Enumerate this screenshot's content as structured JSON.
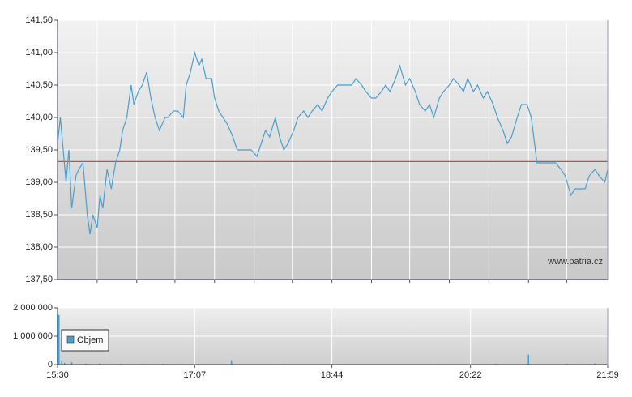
{
  "chart_data": [
    {
      "type": "line",
      "x": [
        930,
        932,
        934,
        936,
        938,
        940,
        943,
        945,
        948,
        951,
        953,
        955,
        958,
        960,
        962,
        965,
        968,
        971,
        974,
        976,
        979,
        982,
        984,
        987,
        990,
        993,
        996,
        999,
        1002,
        1006,
        1008,
        1012,
        1015,
        1019,
        1021,
        1024,
        1027,
        1030,
        1032,
        1035,
        1039,
        1041,
        1044,
        1047,
        1050,
        1054,
        1057,
        1060,
        1064,
        1067,
        1071,
        1074,
        1077,
        1080,
        1084,
        1087,
        1090,
        1093,
        1097,
        1100,
        1104,
        1107,
        1110,
        1114,
        1117,
        1121,
        1124,
        1128,
        1131,
        1135,
        1138,
        1141,
        1145,
        1148,
        1152,
        1155,
        1159,
        1162,
        1165,
        1169,
        1172,
        1176,
        1179,
        1183,
        1186,
        1190,
        1193,
        1196,
        1200,
        1203,
        1207,
        1210,
        1214,
        1217,
        1220,
        1224,
        1227,
        1231,
        1234,
        1238,
        1241,
        1245,
        1248,
        1251,
        1255,
        1258,
        1262,
        1265,
        1269,
        1272,
        1275,
        1279,
        1282,
        1286,
        1289,
        1293,
        1296,
        1300,
        1303,
        1306,
        1310,
        1313,
        1317,
        1319
      ],
      "values": [
        139.6,
        140.0,
        139.5,
        139.0,
        139.5,
        138.6,
        139.1,
        139.2,
        139.3,
        138.5,
        138.2,
        138.5,
        138.3,
        138.8,
        138.6,
        139.2,
        138.9,
        139.3,
        139.5,
        139.8,
        140.0,
        140.5,
        140.2,
        140.4,
        140.5,
        140.7,
        140.3,
        140.0,
        139.8,
        140.0,
        140.0,
        140.1,
        140.1,
        140.0,
        140.5,
        140.7,
        141.0,
        140.8,
        140.9,
        140.6,
        140.6,
        140.3,
        140.1,
        140.0,
        139.9,
        139.7,
        139.5,
        139.5,
        139.5,
        139.5,
        139.4,
        139.6,
        139.8,
        139.7,
        140.0,
        139.7,
        139.5,
        139.6,
        139.8,
        140.0,
        140.1,
        140.0,
        140.1,
        140.2,
        140.1,
        140.3,
        140.4,
        140.5,
        140.5,
        140.5,
        140.5,
        140.6,
        140.5,
        140.4,
        140.3,
        140.3,
        140.4,
        140.5,
        140.4,
        140.6,
        140.8,
        140.5,
        140.6,
        140.4,
        140.2,
        140.1,
        140.2,
        140.0,
        140.3,
        140.4,
        140.5,
        140.6,
        140.5,
        140.4,
        140.6,
        140.4,
        140.5,
        140.3,
        140.4,
        140.2,
        140.0,
        139.8,
        139.6,
        139.7,
        140.0,
        140.2,
        140.2,
        140.0,
        139.3,
        139.3,
        139.3,
        139.3,
        139.3,
        139.2,
        139.1,
        138.8,
        138.9,
        138.9,
        138.9,
        139.1,
        139.2,
        139.1,
        139.0,
        139.2
      ],
      "color": "#4a9fcf",
      "xlim": [
        930,
        1319
      ],
      "ylim": [
        137.5,
        141.5
      ],
      "yticks": [
        {
          "value": 137.5,
          "label": "137,50"
        },
        {
          "value": 138,
          "label": "138,00"
        },
        {
          "value": 138.5,
          "label": "138,50"
        },
        {
          "value": 139,
          "label": "139,00"
        },
        {
          "value": 139.5,
          "label": "139,50"
        },
        {
          "value": 140,
          "label": "140,00"
        },
        {
          "value": 140.5,
          "label": "140,50"
        },
        {
          "value": 141,
          "label": "141,00"
        },
        {
          "value": 141.5,
          "label": "141,50"
        }
      ],
      "xgrid": [
        958,
        986,
        1013,
        1041,
        1069,
        1096,
        1124,
        1152,
        1179,
        1207,
        1235,
        1263,
        1290
      ],
      "reference_line": {
        "value": 139.32,
        "color": "#e04040"
      },
      "watermark": "www.patria.cz",
      "grid": true
    },
    {
      "type": "bar",
      "x": [
        930,
        931,
        933,
        935,
        940,
        950,
        960,
        975,
        990,
        1005,
        1030,
        1053,
        1090,
        1124,
        1160,
        1200,
        1240,
        1263,
        1290,
        1310
      ],
      "series": [
        {
          "name": "Objem",
          "color": "#4a9fcf",
          "values": [
            1800000,
            1750000,
            150000,
            60000,
            80000,
            30000,
            40000,
            25000,
            20000,
            30000,
            15000,
            150000,
            20000,
            25000,
            15000,
            20000,
            25000,
            350000,
            30000,
            40000
          ]
        }
      ],
      "xlim": [
        930,
        1319
      ],
      "xticks": [
        {
          "value": 930,
          "label": "15:30"
        },
        {
          "value": 1027,
          "label": "17:07"
        },
        {
          "value": 1124,
          "label": "18:44"
        },
        {
          "value": 1222,
          "label": "20:22"
        },
        {
          "value": 1319,
          "label": "21:59"
        }
      ],
      "ylim": [
        0,
        2000000
      ],
      "yticks": [
        0,
        {
          "value": 1000000,
          "label": "1 000 000"
        },
        {
          "value": 2000000,
          "label": "2 000 000"
        }
      ],
      "grid": true
    }
  ]
}
